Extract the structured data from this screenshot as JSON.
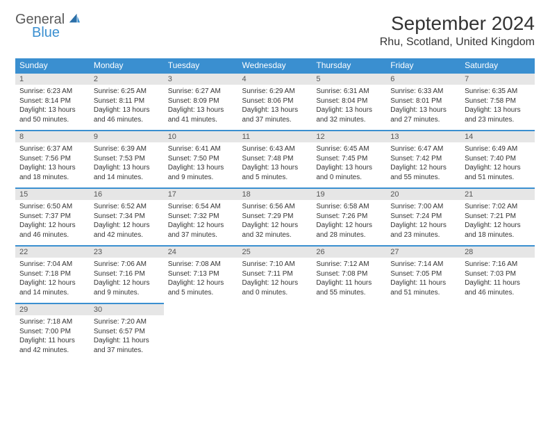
{
  "brand": {
    "part1": "General",
    "part2": "Blue"
  },
  "title": "September 2024",
  "location": "Rhu, Scotland, United Kingdom",
  "colors": {
    "accent": "#3a8fd0",
    "header_bg": "#3a8fd0",
    "daynum_bg": "#e6e6e6",
    "text": "#333333"
  },
  "weekdays": [
    "Sunday",
    "Monday",
    "Tuesday",
    "Wednesday",
    "Thursday",
    "Friday",
    "Saturday"
  ],
  "days": [
    {
      "n": "1",
      "sr": "6:23 AM",
      "ss": "8:14 PM",
      "dl": "13 hours and 50 minutes."
    },
    {
      "n": "2",
      "sr": "6:25 AM",
      "ss": "8:11 PM",
      "dl": "13 hours and 46 minutes."
    },
    {
      "n": "3",
      "sr": "6:27 AM",
      "ss": "8:09 PM",
      "dl": "13 hours and 41 minutes."
    },
    {
      "n": "4",
      "sr": "6:29 AM",
      "ss": "8:06 PM",
      "dl": "13 hours and 37 minutes."
    },
    {
      "n": "5",
      "sr": "6:31 AM",
      "ss": "8:04 PM",
      "dl": "13 hours and 32 minutes."
    },
    {
      "n": "6",
      "sr": "6:33 AM",
      "ss": "8:01 PM",
      "dl": "13 hours and 27 minutes."
    },
    {
      "n": "7",
      "sr": "6:35 AM",
      "ss": "7:58 PM",
      "dl": "13 hours and 23 minutes."
    },
    {
      "n": "8",
      "sr": "6:37 AM",
      "ss": "7:56 PM",
      "dl": "13 hours and 18 minutes."
    },
    {
      "n": "9",
      "sr": "6:39 AM",
      "ss": "7:53 PM",
      "dl": "13 hours and 14 minutes."
    },
    {
      "n": "10",
      "sr": "6:41 AM",
      "ss": "7:50 PM",
      "dl": "13 hours and 9 minutes."
    },
    {
      "n": "11",
      "sr": "6:43 AM",
      "ss": "7:48 PM",
      "dl": "13 hours and 5 minutes."
    },
    {
      "n": "12",
      "sr": "6:45 AM",
      "ss": "7:45 PM",
      "dl": "13 hours and 0 minutes."
    },
    {
      "n": "13",
      "sr": "6:47 AM",
      "ss": "7:42 PM",
      "dl": "12 hours and 55 minutes."
    },
    {
      "n": "14",
      "sr": "6:49 AM",
      "ss": "7:40 PM",
      "dl": "12 hours and 51 minutes."
    },
    {
      "n": "15",
      "sr": "6:50 AM",
      "ss": "7:37 PM",
      "dl": "12 hours and 46 minutes."
    },
    {
      "n": "16",
      "sr": "6:52 AM",
      "ss": "7:34 PM",
      "dl": "12 hours and 42 minutes."
    },
    {
      "n": "17",
      "sr": "6:54 AM",
      "ss": "7:32 PM",
      "dl": "12 hours and 37 minutes."
    },
    {
      "n": "18",
      "sr": "6:56 AM",
      "ss": "7:29 PM",
      "dl": "12 hours and 32 minutes."
    },
    {
      "n": "19",
      "sr": "6:58 AM",
      "ss": "7:26 PM",
      "dl": "12 hours and 28 minutes."
    },
    {
      "n": "20",
      "sr": "7:00 AM",
      "ss": "7:24 PM",
      "dl": "12 hours and 23 minutes."
    },
    {
      "n": "21",
      "sr": "7:02 AM",
      "ss": "7:21 PM",
      "dl": "12 hours and 18 minutes."
    },
    {
      "n": "22",
      "sr": "7:04 AM",
      "ss": "7:18 PM",
      "dl": "12 hours and 14 minutes."
    },
    {
      "n": "23",
      "sr": "7:06 AM",
      "ss": "7:16 PM",
      "dl": "12 hours and 9 minutes."
    },
    {
      "n": "24",
      "sr": "7:08 AM",
      "ss": "7:13 PM",
      "dl": "12 hours and 5 minutes."
    },
    {
      "n": "25",
      "sr": "7:10 AM",
      "ss": "7:11 PM",
      "dl": "12 hours and 0 minutes."
    },
    {
      "n": "26",
      "sr": "7:12 AM",
      "ss": "7:08 PM",
      "dl": "11 hours and 55 minutes."
    },
    {
      "n": "27",
      "sr": "7:14 AM",
      "ss": "7:05 PM",
      "dl": "11 hours and 51 minutes."
    },
    {
      "n": "28",
      "sr": "7:16 AM",
      "ss": "7:03 PM",
      "dl": "11 hours and 46 minutes."
    },
    {
      "n": "29",
      "sr": "7:18 AM",
      "ss": "7:00 PM",
      "dl": "11 hours and 42 minutes."
    },
    {
      "n": "30",
      "sr": "7:20 AM",
      "ss": "6:57 PM",
      "dl": "11 hours and 37 minutes."
    }
  ],
  "labels": {
    "sunrise": "Sunrise: ",
    "sunset": "Sunset: ",
    "daylight": "Daylight: "
  }
}
